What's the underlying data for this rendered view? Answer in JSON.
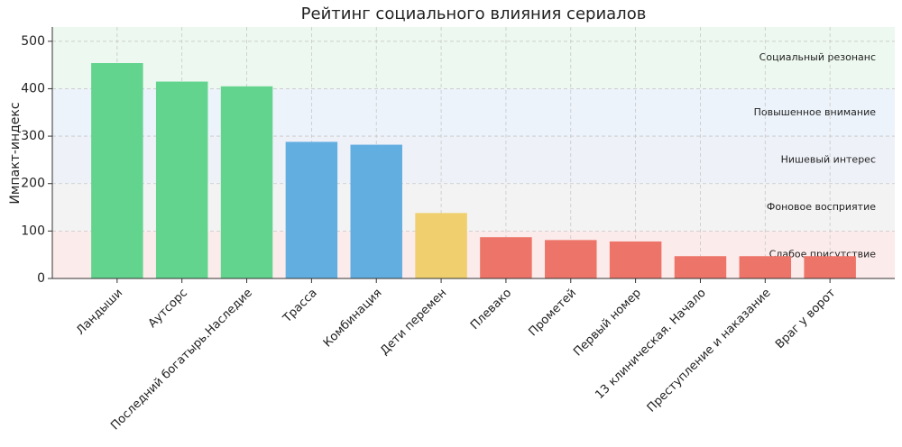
{
  "chart_data": {
    "type": "bar",
    "title": "Рейтинг социального влияния сериалов",
    "y_label": "Импакт-индекс",
    "categories": [
      "Ландыши",
      "Аутсорс",
      "Последний богатырь.Наследие",
      "Трасса",
      "Комбинация",
      "Дети перемен",
      "Плевако",
      "Прометей",
      "Первый номер",
      "13 клиническая. Начало",
      "Преступление и наказание",
      "Враг у ворот"
    ],
    "values": [
      454,
      415,
      405,
      288,
      282,
      138,
      87,
      81,
      78,
      47,
      47,
      47
    ],
    "colors": [
      "#62d48e",
      "#62d48e",
      "#62d48e",
      "#63aee0",
      "#63aee0",
      "#efcf6e",
      "#ec7468",
      "#ec7468",
      "#ec7468",
      "#ec7468",
      "#ec7468",
      "#ec7468"
    ],
    "ylim": [
      0,
      530
    ],
    "yticks": [
      0,
      100,
      200,
      300,
      400,
      500
    ],
    "grid": true,
    "bands": [
      {
        "from": 0,
        "to": 100,
        "label": "Слабое присутствие",
        "color": "#fcebeb"
      },
      {
        "from": 100,
        "to": 200,
        "label": "Фоновое восприятие",
        "color": "#f3f3f3"
      },
      {
        "from": 200,
        "to": 300,
        "label": "Нишевый интерес",
        "color": "#eef1f8"
      },
      {
        "from": 300,
        "to": 400,
        "label": "Повышенное внимание",
        "color": "#ecf3fb"
      },
      {
        "from": 400,
        "to": 530,
        "label": "Социальный резонанс",
        "color": "#edf8f0"
      }
    ]
  }
}
